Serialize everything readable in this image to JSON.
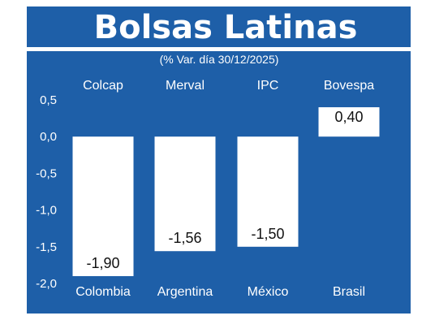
{
  "chart_data": {
    "type": "bar",
    "title": "Bolsas Latinas",
    "subtitle": "(% Var. día 30/12/2025)",
    "indices": [
      "Colcap",
      "Merval",
      "IPC",
      "Bovespa"
    ],
    "categories": [
      "Colombia",
      "Argentina",
      "México",
      "Brasil"
    ],
    "values": [
      -1.9,
      -1.56,
      -1.5,
      0.4
    ],
    "value_labels": [
      "-1,90",
      "-1,56",
      "-1,50",
      "0,40"
    ],
    "ylim": [
      -2.0,
      0.5
    ],
    "yticks": [
      0.5,
      0.0,
      -0.5,
      -1.0,
      -1.5,
      -2.0
    ],
    "ytick_labels": [
      "0,5",
      "0,0",
      "-0,5",
      "-1,0",
      "-1,5",
      "-2,0"
    ],
    "grid": false,
    "colors": {
      "background": "#1e5fa8",
      "bars": "#ffffff",
      "text": "#ffffff",
      "value_text": "#111111"
    }
  }
}
